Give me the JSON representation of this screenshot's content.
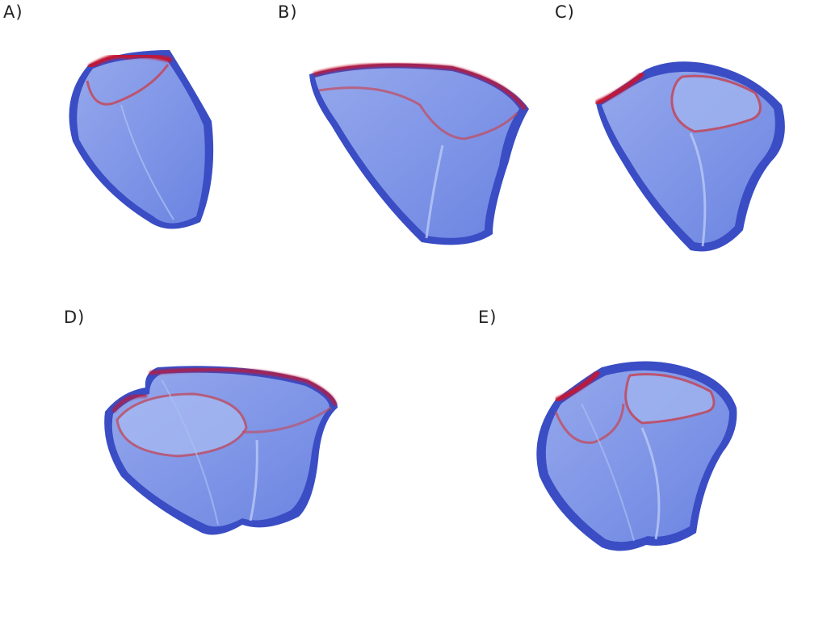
{
  "panels": [
    {
      "id": "A",
      "label": "A)"
    },
    {
      "id": "B",
      "label": "B)"
    },
    {
      "id": "C",
      "label": "C)"
    },
    {
      "id": "D",
      "label": "D)"
    },
    {
      "id": "E",
      "label": "E)"
    }
  ],
  "colors": {
    "outer_shell": "#3a4dc4",
    "inner_surface": "#8099ea",
    "inner_highlight": "#a9bdf3",
    "rim_red": "#c41230",
    "ring_red": "#c4485a",
    "background": "#ffffff"
  }
}
